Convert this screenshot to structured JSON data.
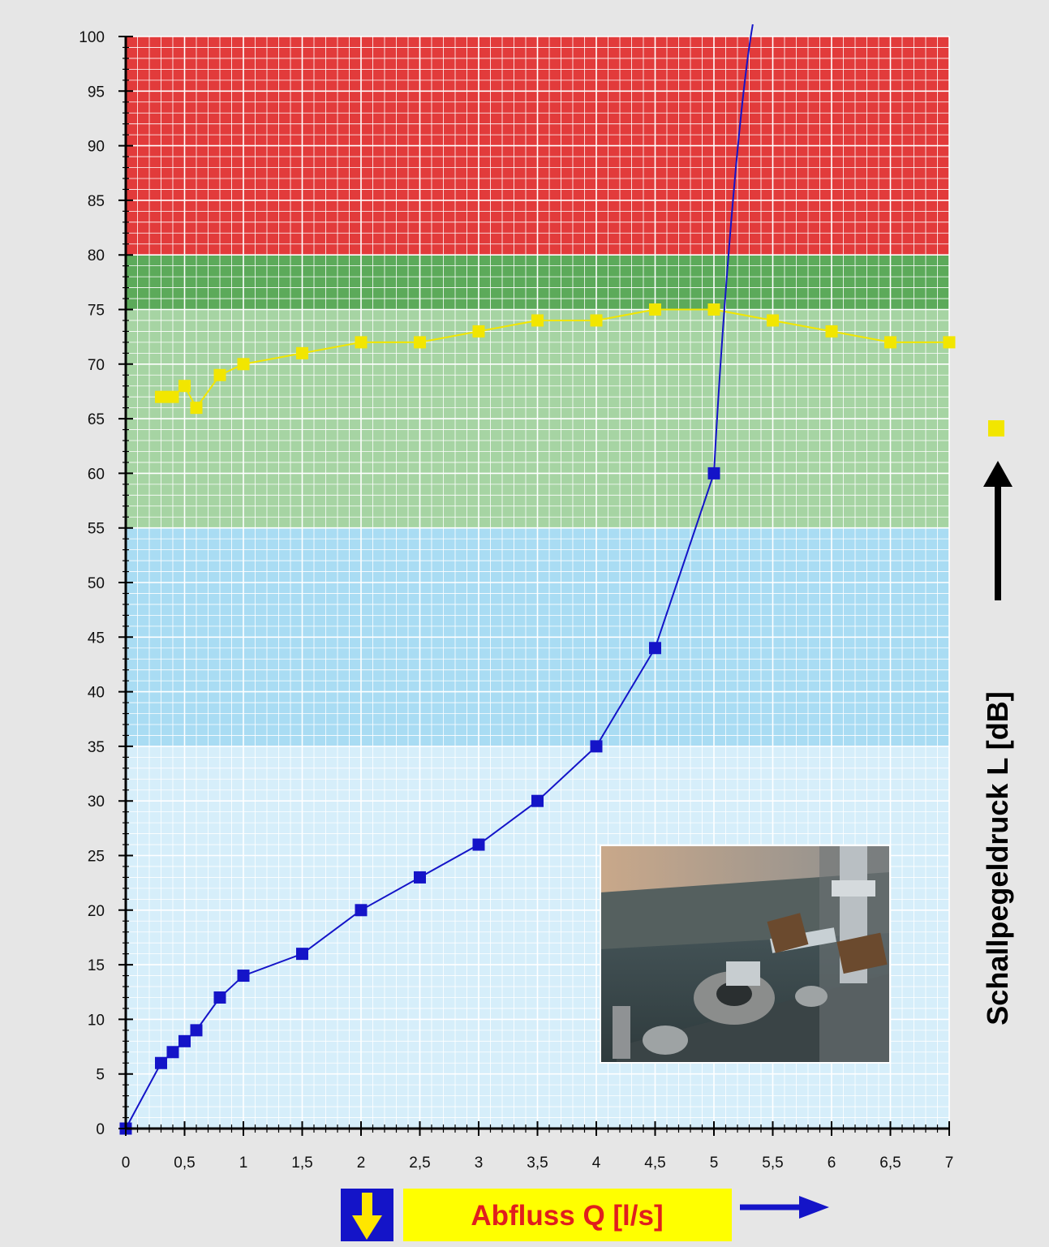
{
  "chart_data": {
    "type": "line",
    "title": "",
    "xlabel": "Abfluss Q [l/s]",
    "ylabel": "Schallpegeldruck L [dB]",
    "xlim": [
      0,
      7
    ],
    "ylim": [
      0,
      100
    ],
    "x_ticks": [
      "0",
      "0,5",
      "1",
      "1,5",
      "2",
      "2,5",
      "3",
      "3,5",
      "4",
      "4,5",
      "5",
      "5,5",
      "6",
      "6,5",
      "7"
    ],
    "y_ticks": [
      "0",
      "5",
      "10",
      "15",
      "20",
      "25",
      "30",
      "35",
      "40",
      "45",
      "50",
      "55",
      "60",
      "65",
      "70",
      "75",
      "80",
      "85",
      "90",
      "95",
      "100"
    ],
    "grid": true,
    "legend": "none",
    "bands": [
      {
        "from": 0,
        "to": 35,
        "color": "#d6eefa"
      },
      {
        "from": 35,
        "to": 55,
        "color": "#a9dcf3"
      },
      {
        "from": 55,
        "to": 75,
        "color": "#a6d4a3"
      },
      {
        "from": 75,
        "to": 80,
        "color": "#5caa5a"
      },
      {
        "from": 80,
        "to": 100,
        "color": "#e23b3b"
      }
    ],
    "series": [
      {
        "color": "#1414c8",
        "x": [
          0,
          0.3,
          0.4,
          0.5,
          0.6,
          0.8,
          1,
          1.5,
          2,
          2.5,
          3,
          3.5,
          4,
          4.5,
          5
        ],
        "y": [
          0,
          6,
          7,
          8,
          9,
          12,
          14,
          16,
          20,
          23,
          26,
          30,
          35,
          44,
          60
        ]
      },
      {
        "color": "#f2e600",
        "x": [
          0.3,
          0.4,
          0.5,
          0.6,
          0.8,
          1,
          1.5,
          2,
          2.5,
          3,
          3.5,
          4,
          4.5,
          5,
          5.5,
          6,
          6.5,
          7
        ],
        "y": [
          67,
          67,
          68,
          66,
          69,
          70,
          71,
          72,
          72,
          73,
          74,
          74,
          75,
          75,
          74,
          73,
          72,
          72
        ]
      }
    ]
  },
  "colors": {
    "background": "#e6e6e6",
    "axis": "#000000",
    "grid": "#ffffff",
    "xlabel_box": "#ffff00",
    "xlabel_text": "#e01e1e",
    "arrow_blue": "#1414c8",
    "arrow_yellow": "#ffe600"
  },
  "icons": {
    "inset_photo": "drain-test-rig-photo",
    "x_arrow": "arrow-right-icon",
    "y_arrow": "arrow-up-icon",
    "down_arrow": "arrow-down-icon",
    "marker": "yellow-square-marker"
  }
}
